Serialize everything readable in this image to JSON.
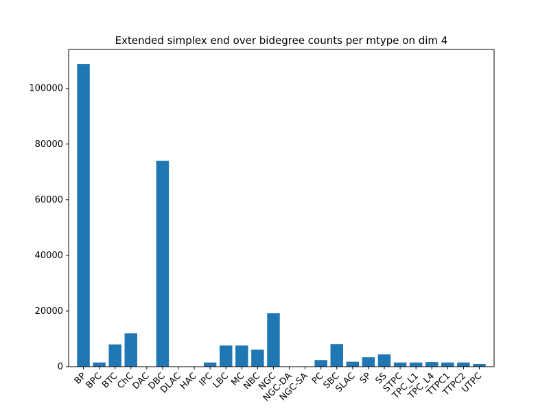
{
  "chart_data": {
    "type": "bar",
    "title": "Extended simplex end over bidegree counts per mtype on dim 4",
    "xlabel": "",
    "ylabel": "",
    "categories": [
      "BP",
      "BPC",
      "BTC",
      "ChC",
      "DAC",
      "DBC",
      "DLAC",
      "HAC",
      "IPC",
      "LBC",
      "MC",
      "NBC",
      "NGC",
      "NGC-DA",
      "NGC-SA",
      "PC",
      "SBC",
      "SLAC",
      "SP",
      "SS",
      "STPC",
      "TPC_L1",
      "TPC_L4",
      "TTPC1",
      "TTPC2",
      "UTPC"
    ],
    "values": [
      108800,
      1500,
      8000,
      12000,
      0,
      74000,
      0,
      0,
      1500,
      7600,
      7600,
      6100,
      19200,
      0,
      0,
      2400,
      8100,
      1800,
      3400,
      4400,
      1500,
      1500,
      1700,
      1500,
      1500,
      1000
    ],
    "ylim": [
      0,
      114000
    ],
    "yticks": [
      0,
      20000,
      40000,
      60000,
      80000,
      100000
    ],
    "grid": false,
    "bar_color": "#1f77b4"
  }
}
